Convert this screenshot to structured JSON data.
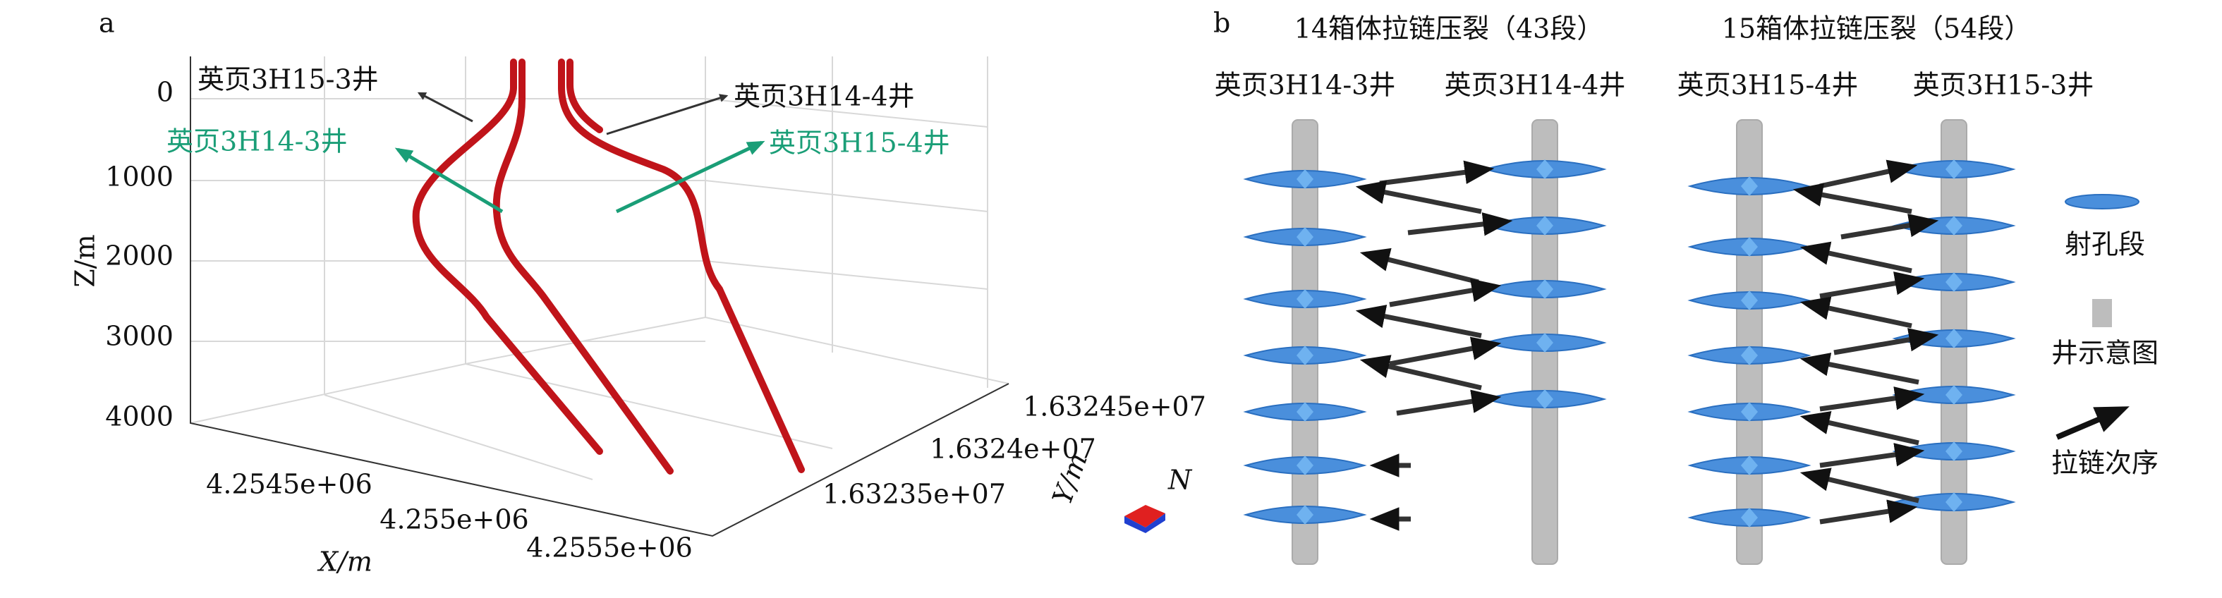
{
  "panel_a": {
    "label": "a",
    "z_axis": {
      "title": "Z/m",
      "ticks": [
        "0",
        "1000",
        "2000",
        "3000",
        "4000"
      ]
    },
    "x_axis": {
      "title": "X/m",
      "ticks": [
        "4.2545e+06",
        "4.255e+06",
        "4.2555e+06"
      ]
    },
    "y_axis": {
      "title": "Y/m",
      "ticks": [
        "1.63245e+07",
        "1.6324e+07",
        "1.63235e+07"
      ]
    },
    "north": "N",
    "annotations": [
      "英页3H15-3井",
      "英页3H14-3井",
      "英页3H14-4井",
      "英页3H15-4井"
    ]
  },
  "panel_b": {
    "label": "b",
    "groups": [
      {
        "title": "14箱体拉链压裂（43段）",
        "wells": [
          "英页3H14-3井",
          "英页3H14-4井"
        ]
      },
      {
        "title": "15箱体拉链压裂（54段）",
        "wells": [
          "英页3H15-4井",
          "英页3H15-3井"
        ]
      }
    ],
    "legend": [
      "射孔段",
      "井示意图",
      "拉链次序"
    ]
  }
}
